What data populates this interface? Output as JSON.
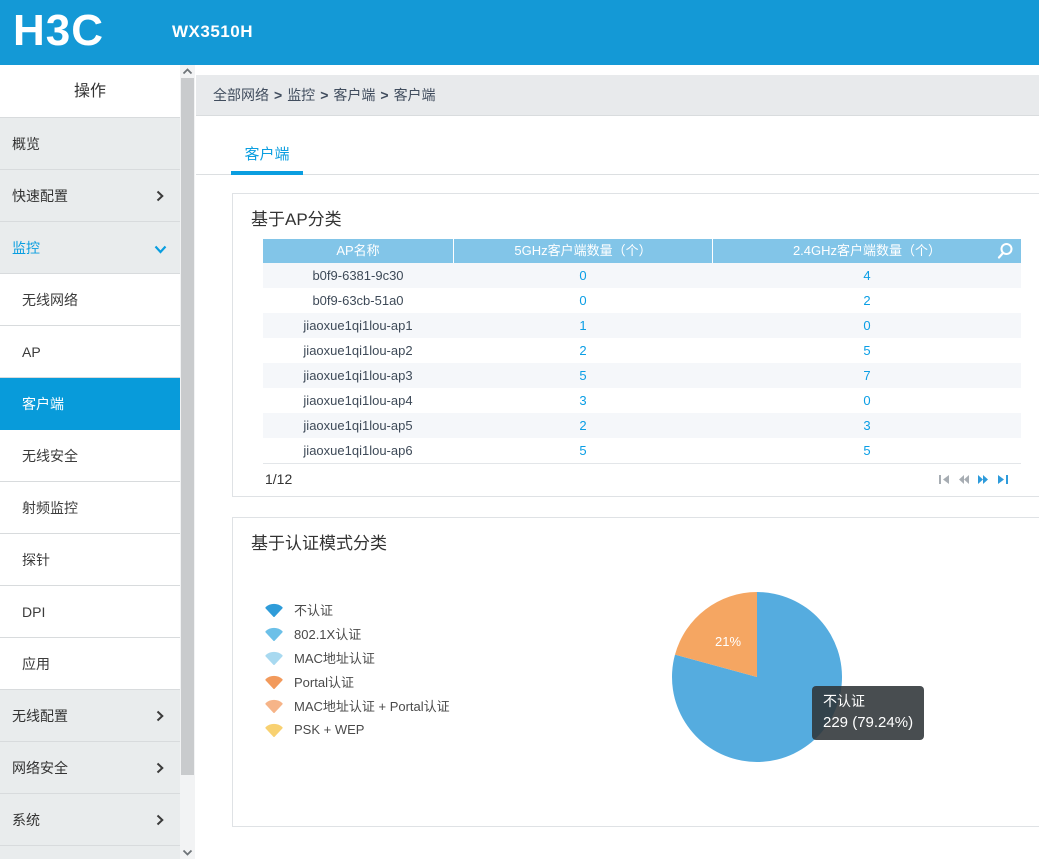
{
  "header": {
    "brand": "H3C",
    "model": "WX3510H"
  },
  "sidebar": {
    "title": "操作",
    "items": [
      {
        "label": "概览",
        "level": "top"
      },
      {
        "label": "快速配置",
        "level": "top",
        "expandable": true
      },
      {
        "label": "监控",
        "level": "top",
        "expanded": true,
        "active": true
      },
      {
        "label": "无线网络",
        "level": "sub"
      },
      {
        "label": "AP",
        "level": "sub"
      },
      {
        "label": "客户端",
        "level": "sub",
        "selected": true
      },
      {
        "label": "无线安全",
        "level": "sub"
      },
      {
        "label": "射频监控",
        "level": "sub"
      },
      {
        "label": "探针",
        "level": "sub"
      },
      {
        "label": "DPI",
        "level": "sub"
      },
      {
        "label": "应用",
        "level": "sub"
      },
      {
        "label": "无线配置",
        "level": "top",
        "expandable": true
      },
      {
        "label": "网络安全",
        "level": "top",
        "expandable": true
      },
      {
        "label": "系统",
        "level": "top",
        "expandable": true
      }
    ]
  },
  "breadcrumb": {
    "items": [
      "全部网络",
      "监控",
      "客户端",
      "客户端"
    ],
    "separator": ">"
  },
  "tabs": {
    "active": "客户端"
  },
  "ap_section": {
    "title": "基于AP分类",
    "table": {
      "columns": [
        "AP名称",
        "5GHz客户端数量（个）",
        "2.4GHz客户端数量（个）"
      ],
      "rows": [
        {
          "name": "b0f9-6381-9c30",
          "ghz5": "0",
          "ghz24": "4"
        },
        {
          "name": "b0f9-63cb-51a0",
          "ghz5": "0",
          "ghz24": "2"
        },
        {
          "name": "jiaoxue1qi1lou-ap1",
          "ghz5": "1",
          "ghz24": "0"
        },
        {
          "name": "jiaoxue1qi1lou-ap2",
          "ghz5": "2",
          "ghz24": "5"
        },
        {
          "name": "jiaoxue1qi1lou-ap3",
          "ghz5": "5",
          "ghz24": "7"
        },
        {
          "name": "jiaoxue1qi1lou-ap4",
          "ghz5": "3",
          "ghz24": "0"
        },
        {
          "name": "jiaoxue1qi1lou-ap5",
          "ghz5": "2",
          "ghz24": "3"
        },
        {
          "name": "jiaoxue1qi1lou-ap6",
          "ghz5": "5",
          "ghz24": "5"
        }
      ],
      "pagination": {
        "current": "1/12"
      }
    }
  },
  "auth_section": {
    "title": "基于认证模式分类",
    "legend": [
      {
        "label": "不认证",
        "color": "#2F9CD9"
      },
      {
        "label": "802.1X认证",
        "color": "#6CC0E8"
      },
      {
        "label": "MAC地址认证",
        "color": "#A8D9F0"
      },
      {
        "label": "Portal认证",
        "color": "#F29A5C"
      },
      {
        "label": "MAC地址认证 + Portal认证",
        "color": "#F6B488"
      },
      {
        "label": "PSK + WEP",
        "color": "#F8D171"
      }
    ],
    "tooltip": {
      "title": "不认证",
      "value": "229 (79.24%)"
    }
  },
  "chart_data": {
    "type": "pie",
    "title": "基于认证模式分类",
    "legend_entries": [
      "不认证",
      "802.1X认证",
      "MAC地址认证",
      "Portal认证",
      "MAC地址认证 + Portal认证",
      "PSK + WEP"
    ],
    "legend_position": "left",
    "start_angle_deg": 90,
    "direction": "clockwise",
    "slices": [
      {
        "label": "不认证",
        "value": 229,
        "percent": 79.24,
        "color": "#55ACDF",
        "display_label": ""
      },
      {
        "label": "",
        "value": 60,
        "percent": 20.76,
        "color": "#F5A662",
        "display_label": "21%"
      }
    ],
    "tooltip": {
      "label": "不认证",
      "text": "229 (79.24%)"
    }
  },
  "colors": {
    "header": "#1499D6",
    "accent": "#0A9EE0",
    "sidebar_selected": "#089BDA",
    "table_header": "#82C5E8",
    "link": "#0A9EE5",
    "pie_blue": "#55ACDF",
    "pie_orange": "#F5A662"
  }
}
